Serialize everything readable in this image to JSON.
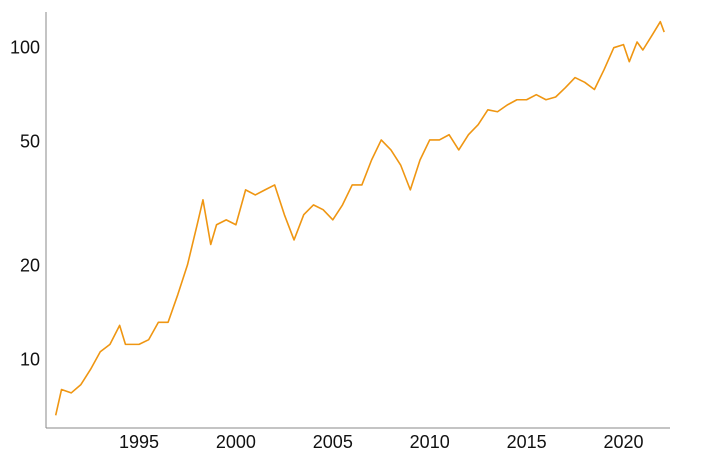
{
  "chart_data": {
    "type": "line",
    "log_scale": true,
    "grid": false,
    "color": "#ef9612",
    "x": [
      1990.7,
      1991.0,
      1991.5,
      1992.0,
      1992.5,
      1993.0,
      1993.5,
      1994.0,
      1994.3,
      1995.0,
      1995.5,
      1996.0,
      1996.5,
      1997.0,
      1997.5,
      1998.0,
      1998.3,
      1998.7,
      1999.0,
      1999.5,
      2000.0,
      2000.5,
      2001.0,
      2001.5,
      2002.0,
      2002.5,
      2003.0,
      2003.5,
      2004.0,
      2004.5,
      2005.0,
      2005.5,
      2006.0,
      2006.5,
      2007.0,
      2007.5,
      2008.0,
      2008.5,
      2009.0,
      2009.5,
      2010.0,
      2010.5,
      2011.0,
      2011.5,
      2012.0,
      2012.5,
      2013.0,
      2013.5,
      2014.0,
      2014.5,
      2015.0,
      2015.5,
      2016.0,
      2016.5,
      2017.0,
      2017.5,
      2018.0,
      2018.5,
      2019.0,
      2019.5,
      2020.0,
      2020.3,
      2020.7,
      2021.0,
      2021.5,
      2021.9,
      2022.1
    ],
    "values": [
      6.7,
      8.1,
      7.9,
      8.4,
      9.4,
      10.7,
      11.3,
      13.0,
      11.3,
      11.3,
      11.7,
      13.3,
      13.3,
      16.3,
      20.3,
      27.3,
      32.8,
      23.6,
      27.3,
      28.3,
      27.3,
      35.3,
      34,
      35.3,
      36.6,
      29.4,
      24.4,
      29.4,
      31.6,
      30.5,
      28.3,
      31.6,
      36.6,
      36.6,
      44,
      51,
      47.4,
      42.4,
      35.3,
      44,
      51,
      51,
      53,
      47.4,
      53,
      57.1,
      63.7,
      62.8,
      66,
      68.6,
      68.6,
      71.2,
      68.6,
      70,
      75,
      80.8,
      78,
      74,
      85.7,
      100.7,
      103,
      90.8,
      105,
      99,
      111,
      122,
      113
    ],
    "xlim": [
      1990.2,
      2022.4
    ],
    "xticks": [
      1995,
      2000,
      2005,
      2010,
      2015,
      2020
    ],
    "ylim": [
      6.1,
      131
    ],
    "yticks": [
      10,
      20,
      50,
      100
    ]
  }
}
